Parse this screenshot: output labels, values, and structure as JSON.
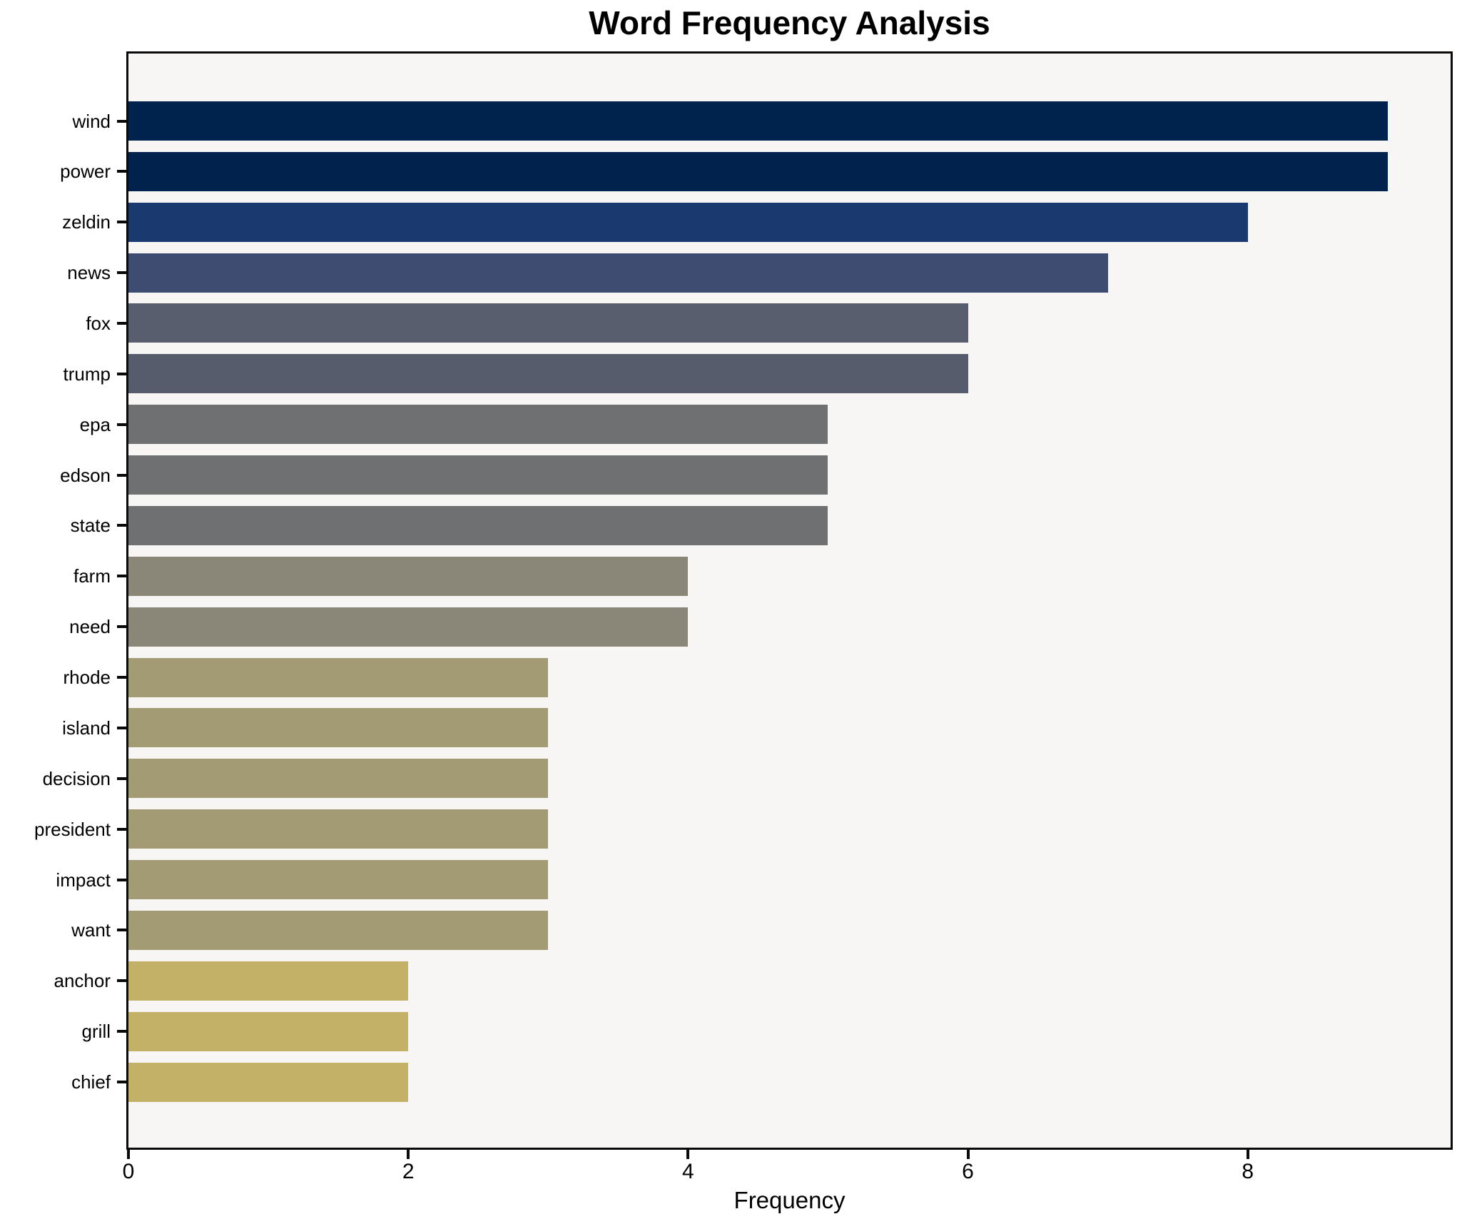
{
  "chart_data": {
    "type": "bar",
    "orientation": "horizontal",
    "title": "Word Frequency Analysis",
    "xlabel": "Frequency",
    "ylabel": "",
    "categories": [
      "wind",
      "power",
      "zeldin",
      "news",
      "fox",
      "trump",
      "epa",
      "edson",
      "state",
      "farm",
      "need",
      "rhode",
      "island",
      "decision",
      "president",
      "impact",
      "want",
      "anchor",
      "grill",
      "chief"
    ],
    "values": [
      9,
      9,
      8,
      7,
      6,
      6,
      5,
      5,
      5,
      4,
      4,
      3,
      3,
      3,
      3,
      3,
      3,
      2,
      2,
      2
    ],
    "bar_colors": [
      "#00234e",
      "#00224c",
      "#1a3a6f",
      "#3d4c70",
      "#585e6e",
      "#565c6c",
      "#6e7072",
      "#6e7072",
      "#6e7072",
      "#8a8779",
      "#8a8779",
      "#a39b73",
      "#a39b73",
      "#a39b73",
      "#a39b73",
      "#a39b73",
      "#a39b73",
      "#c2b166",
      "#c2b166",
      "#c2b166"
    ],
    "xlim": [
      0,
      9.45
    ],
    "xticks": [
      0,
      2,
      4,
      6,
      8
    ],
    "grid": false,
    "legend_position": "none",
    "plot_background": "#f7f6f4",
    "figure_background": "#ffffff",
    "spine_color": "#0a0a0a",
    "text_color": "#000000"
  }
}
